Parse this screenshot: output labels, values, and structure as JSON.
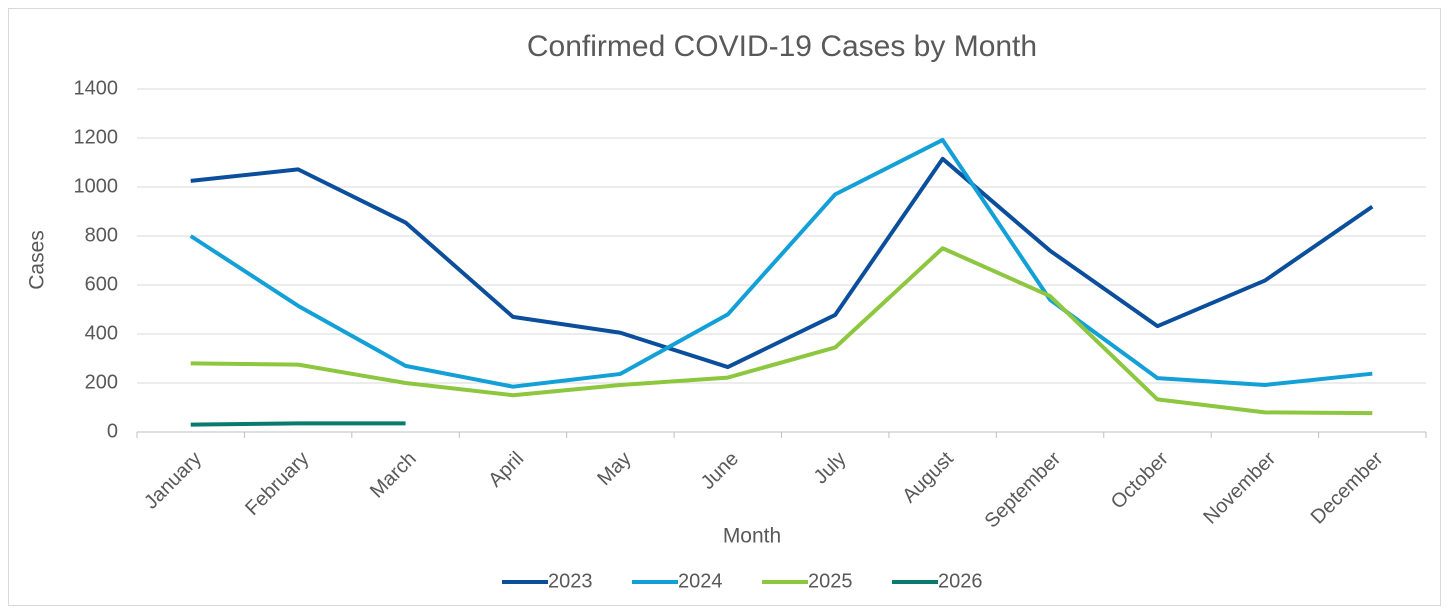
{
  "chart_data": {
    "type": "line",
    "title": "Confirmed COVID-19 Cases by Month",
    "x_label": "Month",
    "y_label": "Cases",
    "categories": [
      "January",
      "February",
      "March",
      "April",
      "May",
      "June",
      "July",
      "August",
      "September",
      "October",
      "November",
      "December"
    ],
    "series": [
      {
        "name": "2023",
        "color": "#0b4f9c",
        "values": [
          1025,
          1072,
          855,
          470,
          405,
          265,
          478,
          1115,
          740,
          432,
          618,
          920
        ]
      },
      {
        "name": "2024",
        "color": "#12a0d7",
        "values": [
          800,
          515,
          270,
          185,
          237,
          480,
          970,
          1192,
          540,
          220,
          192,
          238
        ]
      },
      {
        "name": "2025",
        "color": "#8dc63f",
        "values": [
          280,
          275,
          200,
          150,
          192,
          222,
          345,
          750,
          555,
          133,
          80,
          77
        ]
      },
      {
        "name": "2026",
        "color": "#0a7a6e",
        "values": [
          30,
          35,
          35,
          null,
          null,
          null,
          null,
          null,
          null,
          null,
          null,
          null
        ]
      }
    ],
    "ylim": [
      0,
      1400
    ],
    "yticks": [
      0,
      200,
      400,
      600,
      800,
      1000,
      1200,
      1400
    ],
    "grid": true,
    "legend": "bottom"
  }
}
